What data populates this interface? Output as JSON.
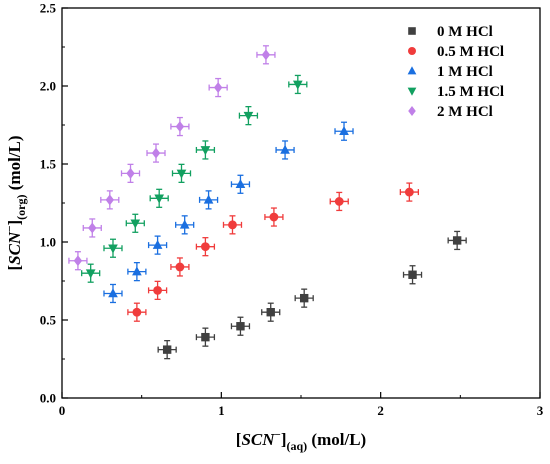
{
  "chart_data": {
    "type": "scatter",
    "title": "",
    "xlabel": {
      "main": "SCN",
      "sup": "−",
      "sub": "(aq)",
      "unit": " (mol/L)"
    },
    "ylabel": {
      "main": "SCN",
      "sup": "−",
      "sub": "(org)",
      "unit": " (mol/L)"
    },
    "xlim": [
      0,
      3
    ],
    "ylim": [
      0,
      2.5
    ],
    "x_ticks": [
      "0",
      "1",
      "2",
      "3"
    ],
    "y_ticks": [
      "0.0",
      "0.5",
      "1.0",
      "1.5",
      "2.0",
      "2.5"
    ],
    "grid": false,
    "legend_position": "top-right",
    "series": [
      {
        "name": "0 M HCl",
        "color": "#404040",
        "marker": "square",
        "points": [
          [
            0.66,
            0.31
          ],
          [
            0.9,
            0.39
          ],
          [
            1.12,
            0.46
          ],
          [
            1.31,
            0.55
          ],
          [
            1.52,
            0.64
          ],
          [
            2.2,
            0.79
          ],
          [
            2.48,
            1.01
          ]
        ]
      },
      {
        "name": "0.5 M HCl",
        "color": "#f03c3c",
        "marker": "circle",
        "points": [
          [
            0.47,
            0.55
          ],
          [
            0.6,
            0.69
          ],
          [
            0.74,
            0.84
          ],
          [
            0.9,
            0.97
          ],
          [
            1.07,
            1.11
          ],
          [
            1.33,
            1.16
          ],
          [
            1.74,
            1.26
          ],
          [
            2.18,
            1.32
          ]
        ]
      },
      {
        "name": "1 M HCl",
        "color": "#1a6fe0",
        "marker": "triangle-up",
        "points": [
          [
            0.32,
            0.67
          ],
          [
            0.47,
            0.81
          ],
          [
            0.6,
            0.98
          ],
          [
            0.77,
            1.11
          ],
          [
            0.92,
            1.27
          ],
          [
            1.12,
            1.37
          ],
          [
            1.4,
            1.59
          ],
          [
            1.77,
            1.71
          ]
        ]
      },
      {
        "name": "1.5 M HCl",
        "color": "#12a060",
        "marker": "triangle-down",
        "points": [
          [
            0.18,
            0.8
          ],
          [
            0.32,
            0.96
          ],
          [
            0.46,
            1.12
          ],
          [
            0.61,
            1.28
          ],
          [
            0.75,
            1.44
          ],
          [
            0.9,
            1.59
          ],
          [
            1.17,
            1.81
          ],
          [
            1.48,
            2.01
          ]
        ]
      },
      {
        "name": "2 M HCl",
        "color": "#c080e8",
        "marker": "diamond",
        "points": [
          [
            0.1,
            0.88
          ],
          [
            0.19,
            1.09
          ],
          [
            0.3,
            1.27
          ],
          [
            0.43,
            1.44
          ],
          [
            0.59,
            1.57
          ],
          [
            0.74,
            1.74
          ],
          [
            0.98,
            1.99
          ],
          [
            1.28,
            2.2
          ]
        ]
      }
    ]
  }
}
